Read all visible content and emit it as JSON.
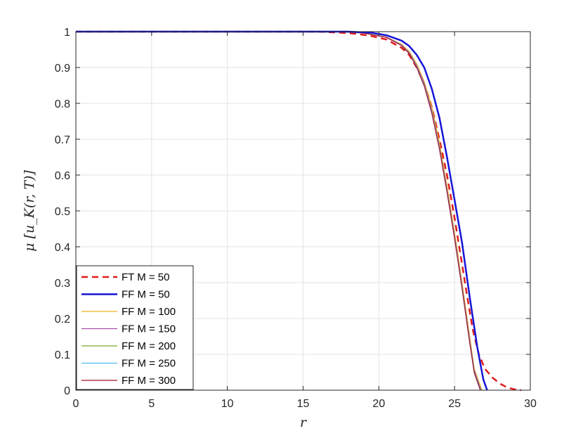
{
  "chart_data": {
    "type": "line",
    "title": "",
    "xlabel": "r",
    "ylabel": "μ [u_K(r, T)]",
    "xlim": [
      0,
      30
    ],
    "ylim": [
      0,
      1
    ],
    "xticks": [
      "0",
      "5",
      "10",
      "15",
      "20",
      "25",
      "30"
    ],
    "yticks": [
      "0",
      "0.1",
      "0.2",
      "0.3",
      "0.4",
      "0.5",
      "0.6",
      "0.7",
      "0.8",
      "0.9",
      "1"
    ],
    "grid": true,
    "legend_position": "bottom-left",
    "series": [
      {
        "name": "FT M = 50",
        "color": "#e01b1b",
        "style": "dashed",
        "x": [
          0,
          16,
          17.5,
          18.5,
          19.5,
          20.5,
          21.5,
          22,
          22.5,
          23,
          23.5,
          24,
          24.5,
          25,
          25.5,
          25.8,
          26.2,
          26.6,
          27,
          27.5,
          28,
          28.5,
          29,
          29.4
        ],
        "y": [
          1,
          1,
          0.997,
          0.994,
          0.988,
          0.978,
          0.955,
          0.935,
          0.9,
          0.855,
          0.79,
          0.7,
          0.6,
          0.48,
          0.35,
          0.27,
          0.17,
          0.1,
          0.06,
          0.035,
          0.018,
          0.007,
          0.002,
          0
        ]
      },
      {
        "name": "FF M = 50",
        "color": "#1515d6",
        "style": "solid",
        "x": [
          0,
          18,
          19.5,
          20.5,
          21.5,
          22,
          22.5,
          23,
          23.5,
          24,
          24.5,
          25,
          25.5,
          26,
          26.5,
          26.9,
          27.15
        ],
        "y": [
          1,
          1,
          0.997,
          0.99,
          0.975,
          0.96,
          0.935,
          0.9,
          0.84,
          0.76,
          0.65,
          0.53,
          0.41,
          0.26,
          0.12,
          0.03,
          0
        ]
      },
      {
        "name": "FF M = 100",
        "color": "#edb120",
        "style": "solid",
        "x": [
          0,
          17.5,
          19,
          20.5,
          21.5,
          22,
          22.5,
          23,
          23.5,
          24,
          24.5,
          25,
          25.5,
          26,
          26.3,
          26.8
        ],
        "y": [
          1,
          1,
          0.996,
          0.985,
          0.965,
          0.945,
          0.91,
          0.86,
          0.79,
          0.69,
          0.57,
          0.44,
          0.3,
          0.15,
          0.06,
          0
        ]
      },
      {
        "name": "FF M = 150",
        "color": "#a64da6",
        "style": "solid",
        "x": [
          0,
          17.5,
          19,
          20.5,
          21.5,
          22,
          22.5,
          23,
          23.5,
          24,
          24.5,
          25,
          25.5,
          26,
          26.3,
          26.75
        ],
        "y": [
          1,
          1,
          0.996,
          0.985,
          0.963,
          0.942,
          0.905,
          0.855,
          0.78,
          0.68,
          0.56,
          0.43,
          0.29,
          0.14,
          0.055,
          0
        ]
      },
      {
        "name": "FF M = 200",
        "color": "#77ac30",
        "style": "solid",
        "x": [
          0,
          17.5,
          19,
          20.5,
          21.5,
          22,
          22.5,
          23,
          23.5,
          24,
          24.5,
          25,
          25.5,
          26,
          26.3,
          26.72
        ],
        "y": [
          1,
          1,
          0.996,
          0.984,
          0.962,
          0.94,
          0.902,
          0.85,
          0.775,
          0.675,
          0.555,
          0.425,
          0.285,
          0.135,
          0.05,
          0
        ]
      },
      {
        "name": "FF M = 250",
        "color": "#4dbeee",
        "style": "solid",
        "x": [
          0,
          17.5,
          19,
          20.5,
          21.5,
          22,
          22.5,
          23,
          23.5,
          24,
          24.5,
          25,
          25.5,
          26,
          26.3,
          26.72
        ],
        "y": [
          1,
          1,
          0.996,
          0.984,
          0.962,
          0.94,
          0.902,
          0.85,
          0.775,
          0.675,
          0.555,
          0.425,
          0.285,
          0.135,
          0.05,
          0
        ]
      },
      {
        "name": "FF M = 300",
        "color": "#a2142f",
        "style": "solid",
        "x": [
          0,
          17.5,
          19,
          20.5,
          21.5,
          22,
          22.5,
          23,
          23.5,
          24,
          24.5,
          25,
          25.5,
          26,
          26.3,
          26.7
        ],
        "y": [
          1,
          1,
          0.996,
          0.984,
          0.961,
          0.939,
          0.9,
          0.848,
          0.772,
          0.672,
          0.552,
          0.422,
          0.282,
          0.132,
          0.048,
          0
        ]
      }
    ]
  }
}
